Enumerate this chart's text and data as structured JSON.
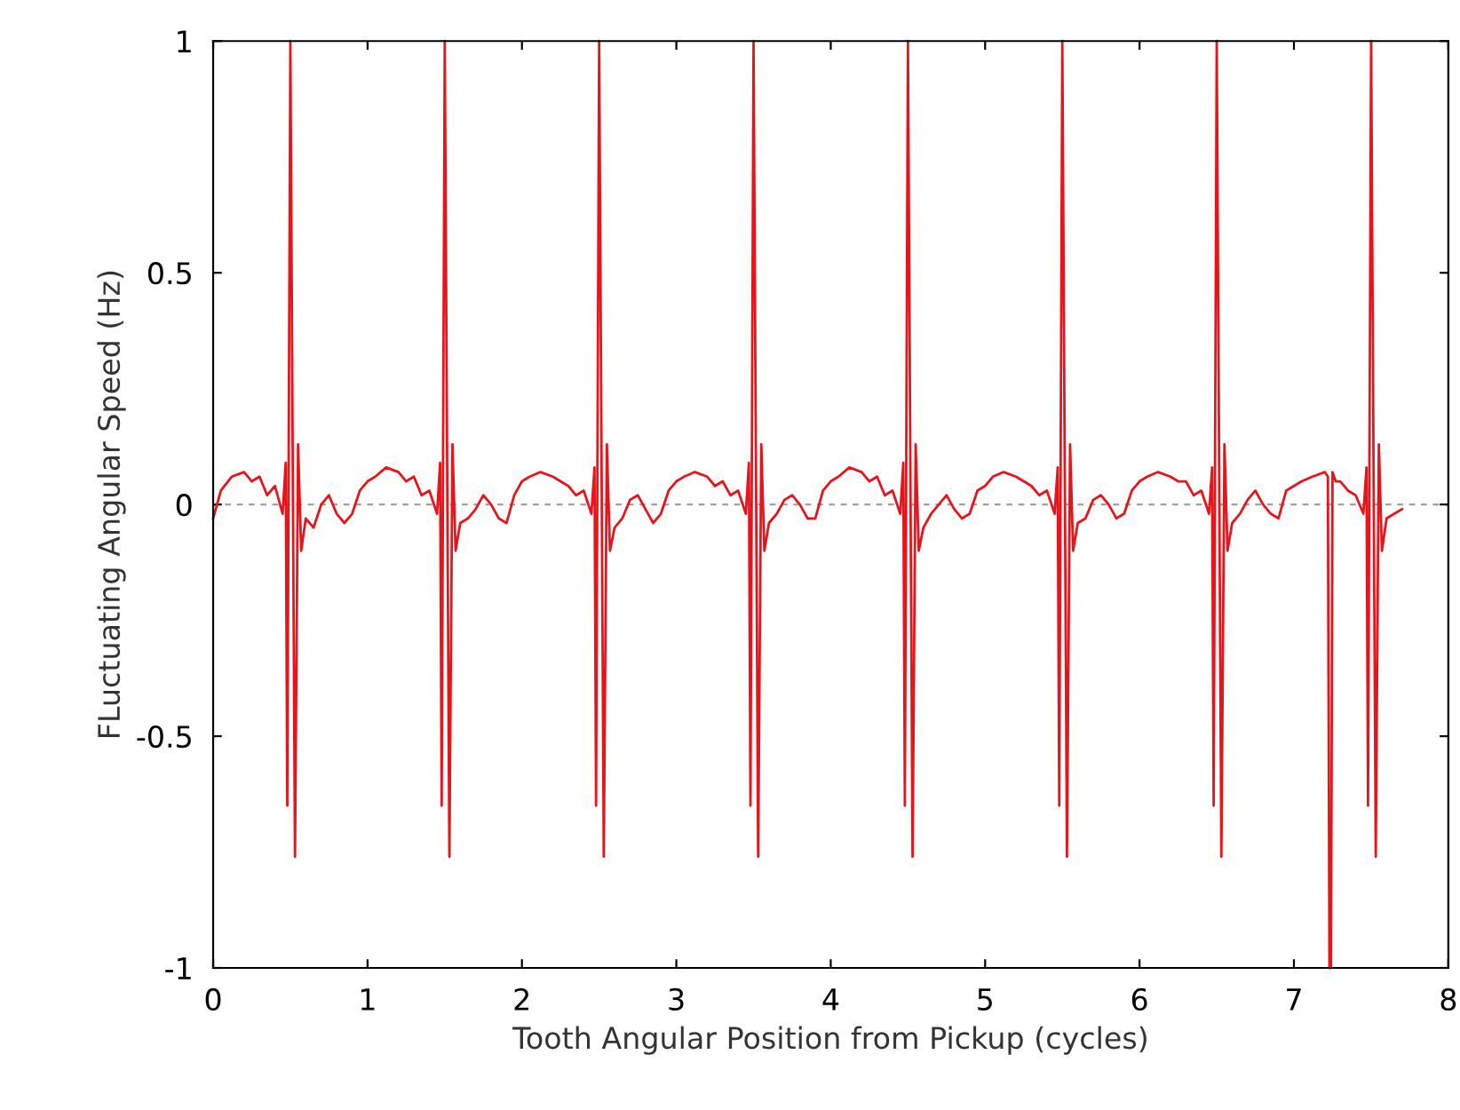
{
  "chart_data": {
    "type": "line",
    "xlabel": "Tooth Angular Position from Pickup (cycles)",
    "ylabel": "FLuctuating Angular Speed (Hz)",
    "xlim": [
      0,
      8
    ],
    "ylim": [
      -1,
      1
    ],
    "xticks": [
      0,
      1,
      2,
      3,
      4,
      5,
      6,
      7,
      8
    ],
    "yticks": [
      -1,
      -0.5,
      0,
      0.5,
      1
    ],
    "grid": false,
    "legend": false,
    "line_style": "solid",
    "marker": "none",
    "ref_lines": [
      {
        "axis": "y",
        "value": 0,
        "color": "#a0a0a0",
        "line_style": "dashed"
      }
    ],
    "series": [
      {
        "color": "#e8141c",
        "x": [
          0,
          0.05,
          0.12,
          0.2,
          0.25,
          0.3,
          0.35,
          0.4,
          0.45,
          0.47,
          0.48,
          0.5,
          0.53,
          0.55,
          0.57,
          0.6,
          0.65,
          0.7,
          0.75,
          0.8,
          0.85,
          0.9,
          0.95,
          1,
          1.05,
          1.12,
          1.2,
          1.25,
          1.3,
          1.35,
          1.4,
          1.45,
          1.47,
          1.48,
          1.5,
          1.53,
          1.55,
          1.57,
          1.6,
          1.65,
          1.7,
          1.75,
          1.8,
          1.85,
          1.9,
          1.95,
          2,
          2.05,
          2.12,
          2.2,
          2.25,
          2.3,
          2.35,
          2.4,
          2.45,
          2.47,
          2.48,
          2.5,
          2.53,
          2.55,
          2.57,
          2.6,
          2.65,
          2.7,
          2.75,
          2.8,
          2.85,
          2.9,
          2.95,
          3,
          3.05,
          3.12,
          3.2,
          3.25,
          3.3,
          3.35,
          3.4,
          3.45,
          3.47,
          3.48,
          3.5,
          3.53,
          3.55,
          3.57,
          3.6,
          3.65,
          3.7,
          3.75,
          3.8,
          3.85,
          3.9,
          3.95,
          4,
          4.05,
          4.12,
          4.2,
          4.25,
          4.3,
          4.35,
          4.4,
          4.45,
          4.47,
          4.48,
          4.5,
          4.53,
          4.55,
          4.57,
          4.6,
          4.65,
          4.7,
          4.75,
          4.8,
          4.85,
          4.9,
          4.95,
          5,
          5.05,
          5.12,
          5.2,
          5.25,
          5.3,
          5.35,
          5.4,
          5.45,
          5.47,
          5.48,
          5.5,
          5.53,
          5.55,
          5.57,
          5.6,
          5.65,
          5.7,
          5.75,
          5.8,
          5.85,
          5.9,
          5.95,
          6,
          6.05,
          6.12,
          6.2,
          6.25,
          6.3,
          6.35,
          6.4,
          6.45,
          6.47,
          6.48,
          6.5,
          6.53,
          6.55,
          6.57,
          6.6,
          6.65,
          6.7,
          6.75,
          6.8,
          6.85,
          6.9,
          6.95,
          7,
          7.05,
          7.12,
          7.2,
          7.22,
          7.23,
          7.24,
          7.25,
          7.27,
          7.3,
          7.35,
          7.4,
          7.45,
          7.47,
          7.48,
          7.5,
          7.53,
          7.55,
          7.57,
          7.6,
          7.65,
          7.7
        ],
        "values": [
          -0.03,
          0.03,
          0.06,
          0.07,
          0.05,
          0.06,
          0.02,
          0.04,
          -0.02,
          0.09,
          -0.65,
          1,
          -0.76,
          0.13,
          -0.1,
          -0.03,
          -0.05,
          0.0,
          0.02,
          -0.02,
          -0.04,
          -0.02,
          0.03,
          0.05,
          0.06,
          0.08,
          0.07,
          0.05,
          0.06,
          0.02,
          0.03,
          -0.02,
          0.09,
          -0.65,
          1,
          -0.76,
          0.13,
          -0.1,
          -0.04,
          -0.03,
          -0.01,
          0.02,
          0.0,
          -0.03,
          -0.04,
          0.02,
          0.05,
          0.06,
          0.07,
          0.06,
          0.05,
          0.04,
          0.02,
          0.03,
          -0.02,
          0.08,
          -0.65,
          1,
          -0.76,
          0.13,
          -0.1,
          -0.05,
          -0.03,
          0.01,
          0.02,
          -0.01,
          -0.04,
          -0.02,
          0.03,
          0.05,
          0.06,
          0.07,
          0.06,
          0.04,
          0.05,
          0.02,
          0.03,
          -0.02,
          0.09,
          -0.65,
          1,
          -0.76,
          0.13,
          -0.1,
          -0.04,
          -0.02,
          0.01,
          0.02,
          0.0,
          -0.03,
          -0.03,
          0.03,
          0.05,
          0.06,
          0.08,
          0.07,
          0.05,
          0.06,
          0.02,
          0.03,
          -0.02,
          0.09,
          -0.65,
          1,
          -0.76,
          0.13,
          -0.1,
          -0.05,
          -0.02,
          0.0,
          0.02,
          -0.01,
          -0.03,
          -0.02,
          0.03,
          0.04,
          0.06,
          0.07,
          0.06,
          0.05,
          0.04,
          0.02,
          0.03,
          -0.02,
          0.08,
          -0.65,
          1,
          -0.76,
          0.13,
          -0.1,
          -0.04,
          -0.03,
          0.01,
          0.02,
          0.0,
          -0.03,
          -0.02,
          0.03,
          0.05,
          0.06,
          0.07,
          0.06,
          0.05,
          0.05,
          0.02,
          0.03,
          -0.02,
          0.08,
          -0.65,
          1,
          -0.76,
          0.13,
          -0.1,
          -0.04,
          -0.02,
          0.01,
          0.03,
          0.0,
          -0.02,
          -0.03,
          0.03,
          0.04,
          0.05,
          0.06,
          0.07,
          0.06,
          -1,
          -1,
          0.07,
          0.05,
          0.05,
          0.03,
          0.02,
          -0.02,
          0.08,
          -0.65,
          1,
          -0.76,
          0.13,
          -0.1,
          -0.03,
          -0.02,
          -0.01
        ]
      }
    ]
  }
}
